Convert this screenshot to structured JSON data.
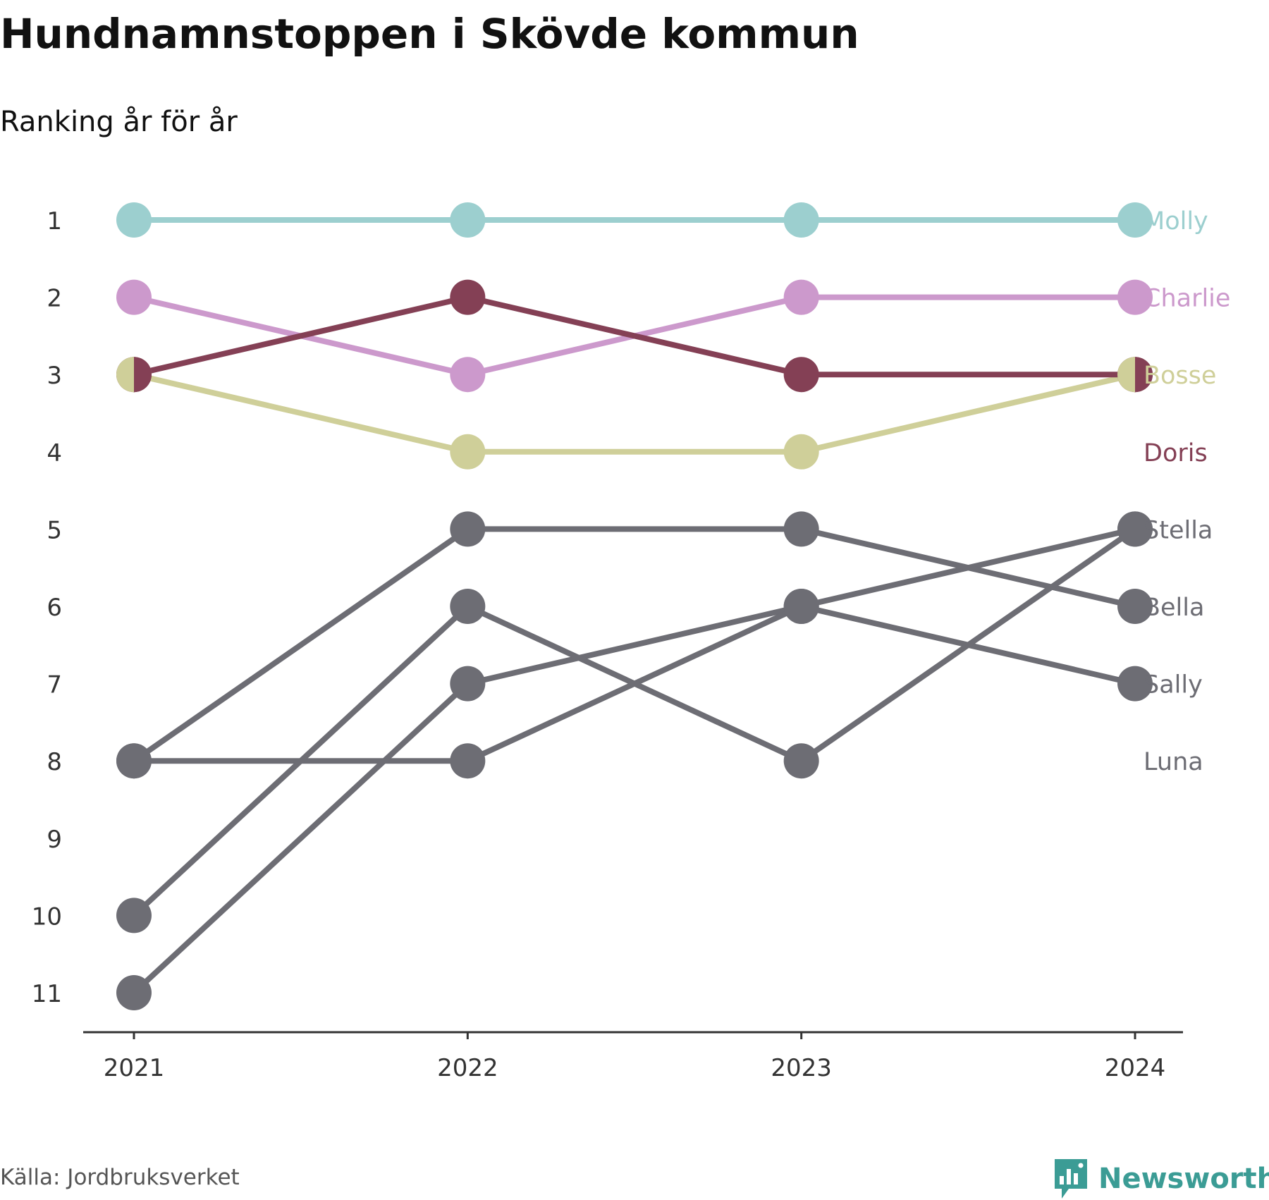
{
  "title": "Hundnamnstoppen i Skövde kommun",
  "subtitle": "Ranking år för år",
  "source": "Källa: Jordbruksverket",
  "brand": {
    "name": "Newsworthy",
    "color": "#3b9c95",
    "icon": "bar-chart-speech-bubble-icon"
  },
  "chart_data": {
    "type": "line",
    "chart_subtype": "bump",
    "x": [
      "2021",
      "2022",
      "2023",
      "2024"
    ],
    "y_ticks": [
      "1",
      "2",
      "3",
      "4",
      "5",
      "6",
      "7",
      "8",
      "9",
      "10",
      "11"
    ],
    "ylim": [
      1,
      11
    ],
    "y_inverted": true,
    "grid": false,
    "legend": "direct labels at right end of lines",
    "series": [
      {
        "name": "Molly",
        "values": [
          1,
          1,
          1,
          1
        ],
        "color": "#9ccfcf"
      },
      {
        "name": "Charlie",
        "values": [
          2,
          3,
          2,
          2
        ],
        "color": "#cc99cc"
      },
      {
        "name": "Bosse",
        "values": [
          3,
          4,
          4,
          3
        ],
        "color": "#cfcf99"
      },
      {
        "name": "Doris",
        "values": [
          3,
          2,
          3,
          3
        ],
        "color": "#844055"
      },
      {
        "name": "Stella",
        "values": [
          11,
          7,
          6,
          5
        ],
        "color": "#6d6d74"
      },
      {
        "name": "Bella",
        "values": [
          8,
          5,
          5,
          6
        ],
        "color": "#6d6d74"
      },
      {
        "name": "Sally",
        "values": [
          8,
          8,
          6,
          7
        ],
        "color": "#6d6d74"
      },
      {
        "name": "Luna",
        "values": [
          10,
          6,
          8,
          5
        ],
        "color": "#6d6d74"
      }
    ]
  }
}
